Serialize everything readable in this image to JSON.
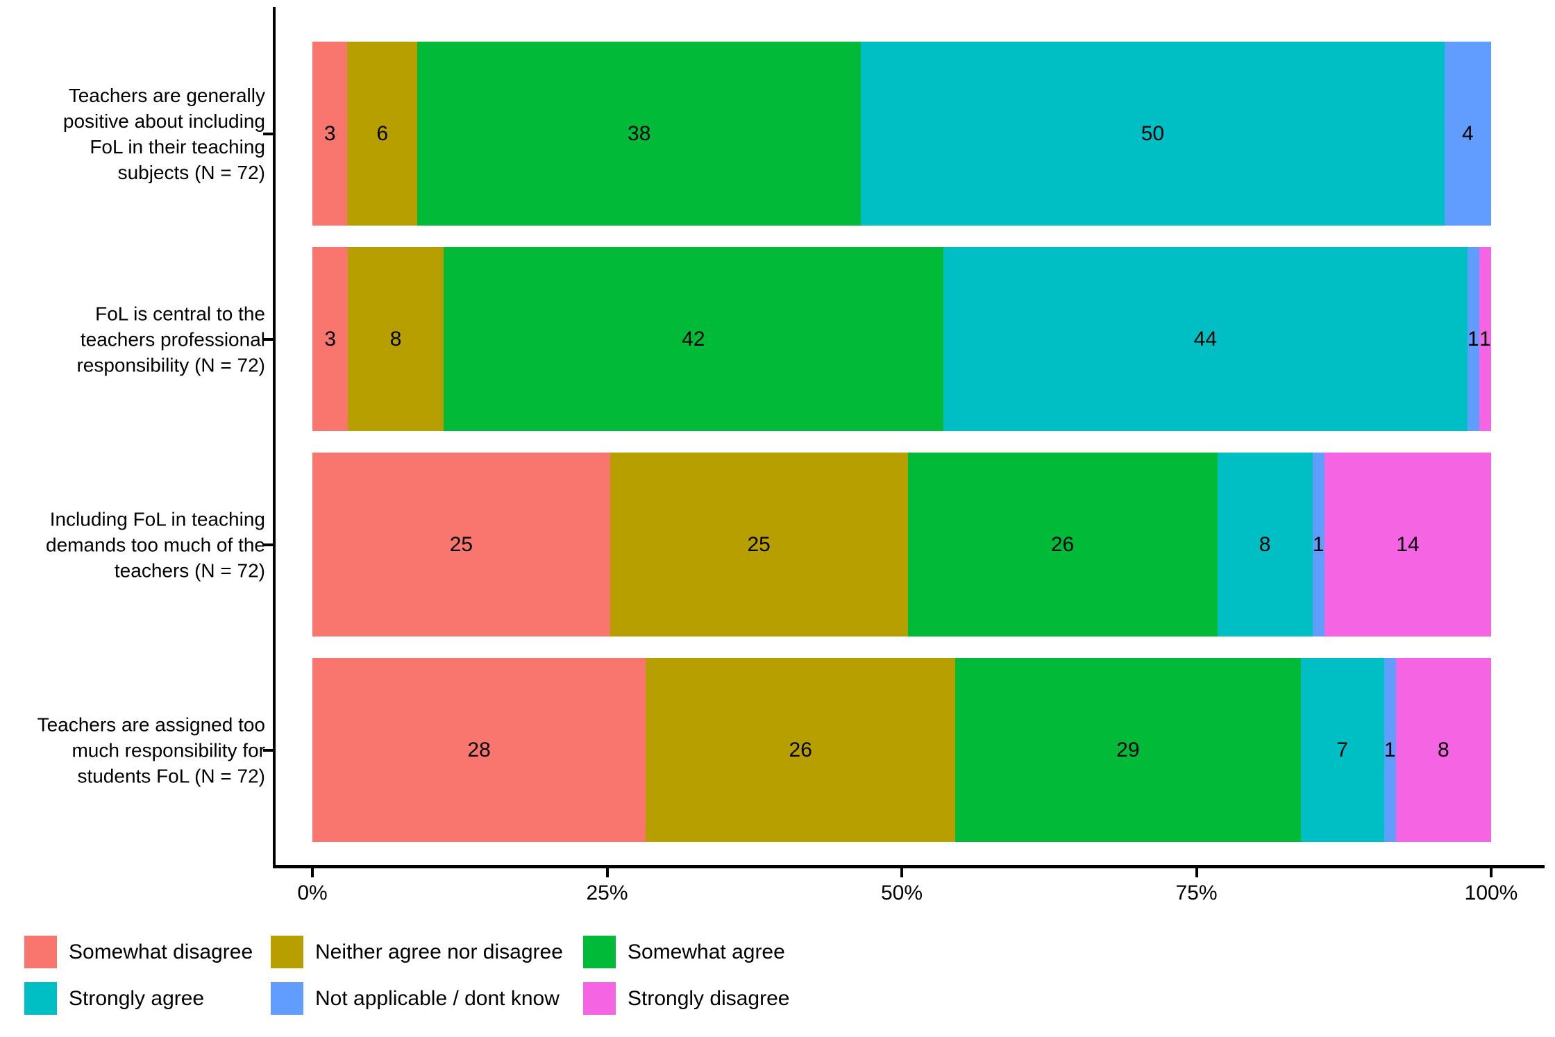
{
  "chart_data": {
    "type": "bar",
    "variant": "horizontal-stacked-100pct",
    "title": "",
    "xlabel": "",
    "ylabel": "",
    "grid": false,
    "value_unit": "percent",
    "x_axis": {
      "tick_labels": [
        "0%",
        "25%",
        "50%",
        "75%",
        "100%"
      ],
      "tick_values": [
        0,
        25,
        50,
        75,
        100
      ],
      "range": [
        0,
        100
      ]
    },
    "categories": [
      "Teachers are generally\npositive about including\nFoL in their teaching\nsubjects (N = 72)",
      "FoL is central to the\nteachers professional\nresponsibility (N = 72)",
      "Including FoL in teaching\ndemands too much of the\nteachers (N = 72)",
      "Teachers are assigned too\nmuch responsibility for\nstudents FoL (N = 72)"
    ],
    "series": [
      {
        "name": "Somewhat disagree",
        "color": "#F8766D",
        "values": [
          3,
          3,
          25,
          28
        ]
      },
      {
        "name": "Neither agree nor disagree",
        "color": "#B79F00",
        "values": [
          6,
          8,
          25,
          26
        ]
      },
      {
        "name": "Somewhat agree",
        "color": "#00BA38",
        "values": [
          38,
          42,
          26,
          29
        ]
      },
      {
        "name": "Strongly agree",
        "color": "#00BFC4",
        "values": [
          50,
          44,
          8,
          7
        ]
      },
      {
        "name": "Not applicable / dont know",
        "color": "#619CFF",
        "values": [
          4,
          1,
          1,
          1
        ]
      },
      {
        "name": "Strongly disagree",
        "color": "#F564E3",
        "values": [
          0,
          1,
          14,
          8
        ]
      }
    ],
    "legend": {
      "position": "bottom",
      "rows": 2,
      "columns": 3,
      "entries": [
        "Somewhat disagree",
        "Neither agree nor disagree",
        "Somewhat agree",
        "Strongly agree",
        "Not applicable / dont know",
        "Strongly disagree"
      ]
    },
    "axis_color": "#000000",
    "label_color": "#000000"
  },
  "layout_note": "segment labels show rounded percent of N=72 responses; zero values hidden"
}
